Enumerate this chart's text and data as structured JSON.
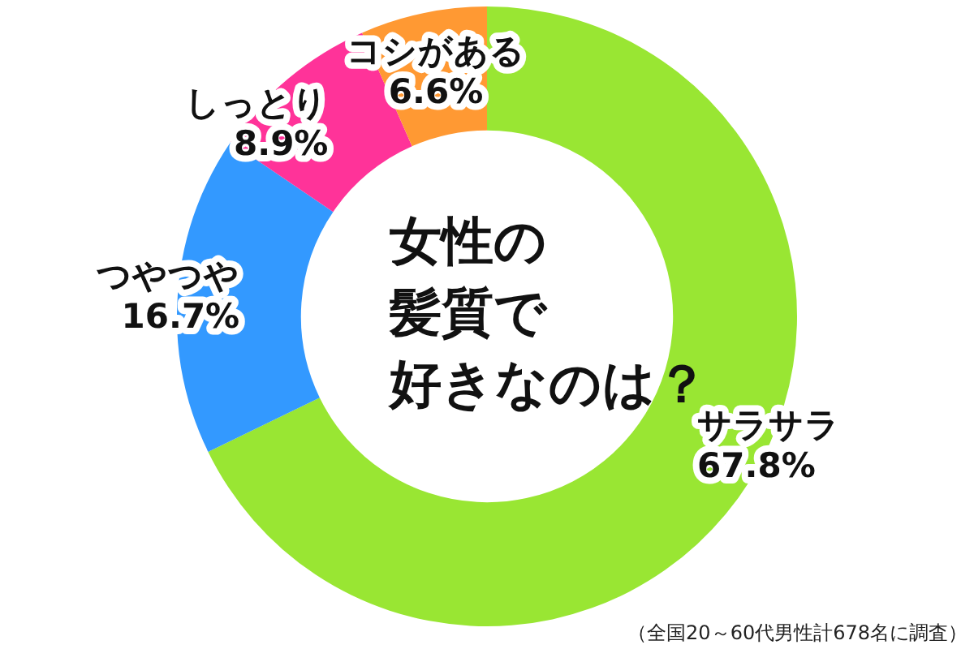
{
  "chart_data": {
    "type": "donut",
    "title": "女性の髪質で好きなのは？",
    "categories": [
      "サラサラ",
      "つやつや",
      "しっとり",
      "コシがある"
    ],
    "values": [
      67.8,
      16.7,
      8.9,
      6.6
    ],
    "value_labels": [
      "67.8%",
      "16.7%",
      "8.9%",
      "6.6%"
    ],
    "colors": [
      "#99e633",
      "#3399ff",
      "#ff3399",
      "#ff9933"
    ],
    "legend": false,
    "annotations": [
      "（全国20～60代男性計678名に調査）"
    ]
  }
}
